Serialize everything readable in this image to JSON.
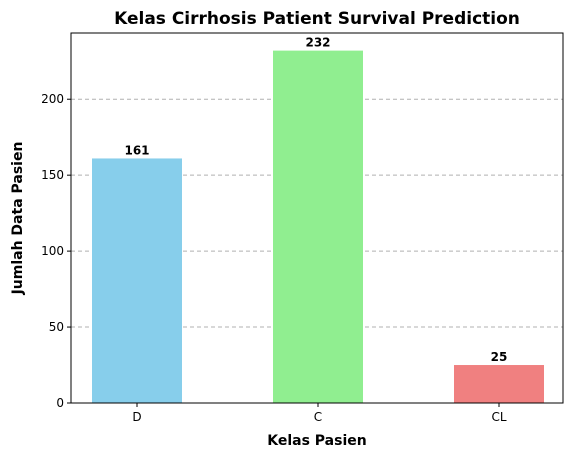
{
  "chart_data": {
    "type": "bar",
    "title": "Kelas Cirrhosis Patient Survival Prediction",
    "xlabel": "Kelas Pasien",
    "ylabel": "Jumlah Data Pasien",
    "categories": [
      "D",
      "C",
      "CL"
    ],
    "values": [
      161,
      232,
      25
    ],
    "data_labels": [
      "161",
      "232",
      "25"
    ],
    "colors": [
      "#87CEEB",
      "#90EE90",
      "#F08080"
    ],
    "ylim": [
      0,
      243.6
    ],
    "yticks": [
      0,
      50,
      100,
      150,
      200
    ],
    "ytick_labels": [
      "0",
      "50",
      "100",
      "150",
      "200"
    ],
    "grid": "y-dashed"
  }
}
